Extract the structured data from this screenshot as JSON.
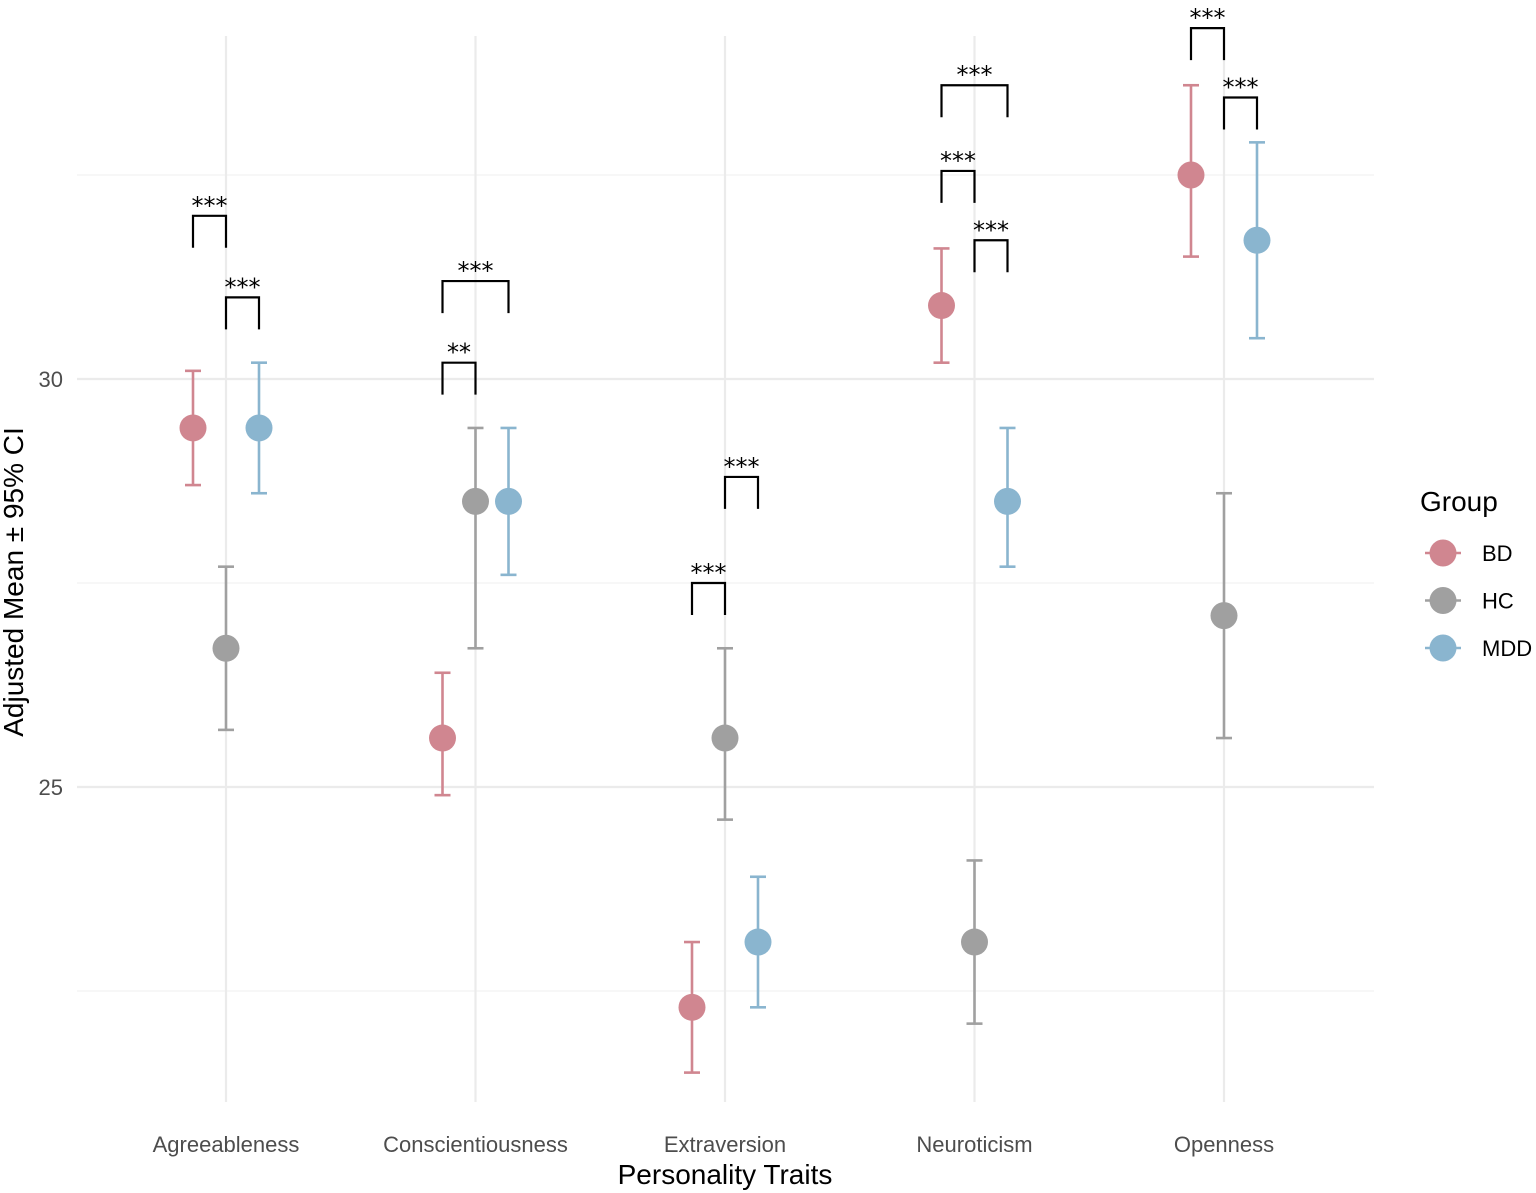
{
  "chart_data": {
    "type": "scatter",
    "subtype": "point-errorbar",
    "title": "",
    "xlabel": "Personality Traits",
    "ylabel": "Adjusted Mean ± 95% CI",
    "categories": [
      "Agreeableness",
      "Conscientiousness",
      "Extraversion",
      "Neuroticism",
      "Openness"
    ],
    "ylim": [
      21.1,
      34.5
    ],
    "y_major_ticks": [
      25,
      30
    ],
    "y_minor_ticks": [
      22.5,
      27.5,
      32.5
    ],
    "grid": true,
    "legend": {
      "title": "Group",
      "position": "right",
      "entries": [
        "BD",
        "HC",
        "MDD"
      ]
    },
    "series": [
      {
        "name": "BD",
        "color": "#d08690",
        "values": [
          29.4,
          25.6,
          22.3,
          30.9,
          32.5
        ],
        "ci_lower": [
          28.7,
          24.9,
          21.5,
          30.2,
          31.5
        ],
        "ci_upper": [
          30.1,
          26.4,
          23.1,
          31.6,
          33.6
        ]
      },
      {
        "name": "HC",
        "color": "#a0a0a0",
        "values": [
          26.7,
          28.5,
          25.6,
          23.1,
          27.1
        ],
        "ci_lower": [
          25.7,
          26.7,
          24.6,
          22.1,
          25.6
        ],
        "ci_upper": [
          27.7,
          29.4,
          26.7,
          24.1,
          28.6
        ]
      },
      {
        "name": "MDD",
        "color": "#8ab5cf",
        "values": [
          29.4,
          28.5,
          23.1,
          28.5,
          31.7
        ],
        "ci_lower": [
          28.6,
          27.6,
          22.3,
          27.7,
          30.5
        ],
        "ci_upper": [
          30.2,
          29.4,
          23.9,
          29.4,
          32.9
        ]
      }
    ],
    "significance": [
      {
        "category": 0,
        "from": "BD",
        "to": "HC",
        "label": "***",
        "y": 32.0
      },
      {
        "category": 0,
        "from": "HC",
        "to": "MDD",
        "label": "***",
        "y": 31.0
      },
      {
        "category": 1,
        "from": "BD",
        "to": "MDD",
        "label": "***",
        "y": 31.2
      },
      {
        "category": 1,
        "from": "BD",
        "to": "HC",
        "label": "**",
        "y": 30.2
      },
      {
        "category": 2,
        "from": "HC",
        "to": "MDD",
        "label": "***",
        "y": 28.8
      },
      {
        "category": 2,
        "from": "BD",
        "to": "HC",
        "label": "***",
        "y": 27.5
      },
      {
        "category": 3,
        "from": "BD",
        "to": "MDD",
        "label": "***",
        "y": 33.6
      },
      {
        "category": 3,
        "from": "BD",
        "to": "HC",
        "label": "***",
        "y": 32.55
      },
      {
        "category": 3,
        "from": "HC",
        "to": "MDD",
        "label": "***",
        "y": 31.7
      },
      {
        "category": 4,
        "from": "BD",
        "to": "HC",
        "label": "***",
        "y": 34.3
      },
      {
        "category": 4,
        "from": "HC",
        "to": "MDD",
        "label": "***",
        "y": 33.45
      }
    ]
  }
}
